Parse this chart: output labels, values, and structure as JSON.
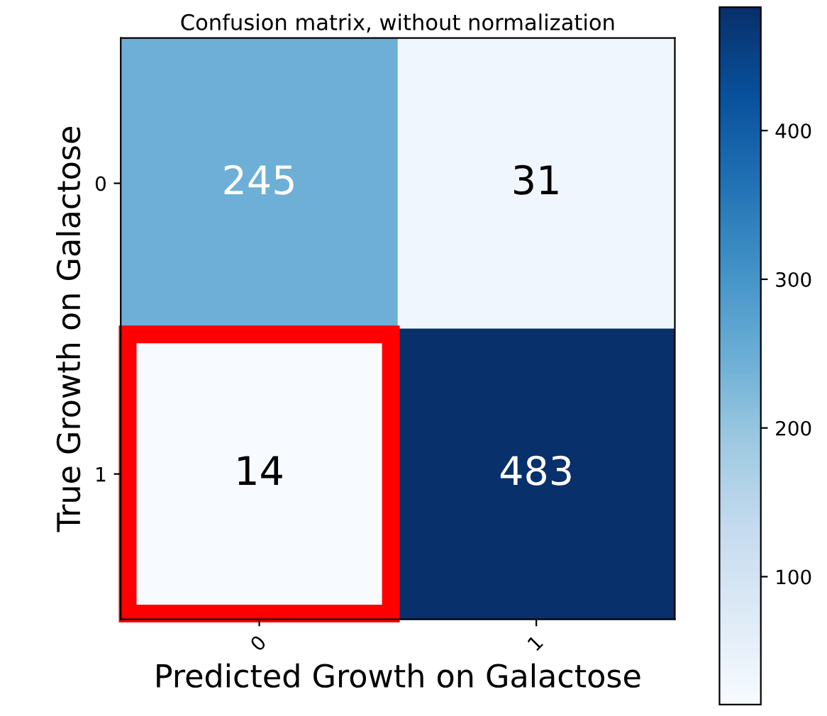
{
  "chart_data": {
    "type": "heatmap",
    "title": "Confusion matrix, without normalization",
    "xlabel": "Predicted Growth on Galactose",
    "ylabel": "True Growth on Galactose",
    "categories": [
      "0",
      "1"
    ],
    "y_categories": [
      "0",
      "1"
    ],
    "cells": [
      [
        245,
        31
      ],
      [
        14,
        483
      ]
    ],
    "clim": [
      14,
      483
    ],
    "cticks": [
      100,
      200,
      300,
      400
    ],
    "data_labels": true
  }
}
